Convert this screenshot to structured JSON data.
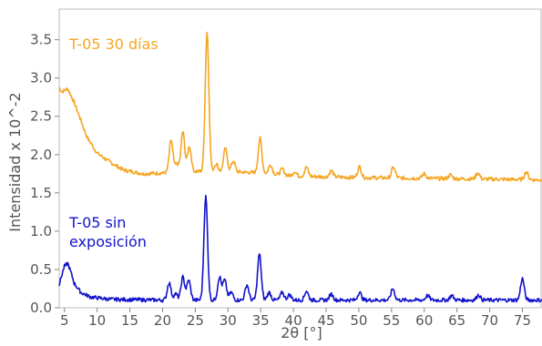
{
  "chart_data": {
    "type": "line",
    "xlabel": "2θ [°]",
    "ylabel": "Intensidad  x 10^-2",
    "xlim": [
      4.2,
      78
    ],
    "ylim": [
      0,
      3.9
    ],
    "x_ticks": [
      5,
      10,
      15,
      20,
      25,
      30,
      35,
      40,
      45,
      50,
      55,
      60,
      65,
      70,
      75
    ],
    "y_ticks": [
      0.0,
      0.5,
      1.0,
      1.5,
      2.0,
      2.5,
      3.0,
      3.5
    ],
    "grid": false,
    "legend": "none",
    "series": [
      {
        "name": "T-05 30 días",
        "color": "#f5a623",
        "label_lines": [
          "T-05 30 días"
        ],
        "baseline": [
          [
            4.2,
            2.88
          ],
          [
            4.6,
            2.82
          ],
          [
            5.5,
            2.86
          ],
          [
            6.5,
            2.68
          ],
          [
            7.5,
            2.45
          ],
          [
            8.5,
            2.22
          ],
          [
            10,
            2.02
          ],
          [
            12,
            1.9
          ],
          [
            14,
            1.8
          ],
          [
            17,
            1.75
          ],
          [
            20,
            1.76
          ],
          [
            23,
            1.78
          ],
          [
            26,
            1.78
          ],
          [
            30,
            1.78
          ],
          [
            35,
            1.76
          ],
          [
            40,
            1.72
          ],
          [
            50,
            1.7
          ],
          [
            60,
            1.69
          ],
          [
            70,
            1.68
          ],
          [
            78,
            1.67
          ]
        ],
        "peaks": [
          [
            21.3,
            0.42
          ],
          [
            22.2,
            0.1
          ],
          [
            23.1,
            0.52
          ],
          [
            24.1,
            0.33
          ],
          [
            26.8,
            1.82
          ],
          [
            28.2,
            0.1
          ],
          [
            29.6,
            0.3
          ],
          [
            30.8,
            0.14
          ],
          [
            34.9,
            0.45
          ],
          [
            36.5,
            0.12
          ],
          [
            38.3,
            0.08
          ],
          [
            40.2,
            0.06
          ],
          [
            42,
            0.12
          ],
          [
            45.8,
            0.08
          ],
          [
            50.1,
            0.14
          ],
          [
            55.3,
            0.14
          ],
          [
            60,
            0.06
          ],
          [
            64,
            0.05
          ],
          [
            68.2,
            0.08
          ],
          [
            75.6,
            0.1
          ]
        ]
      },
      {
        "name": "T-05 sin exposición",
        "color": "#1212cc",
        "label_lines": [
          "T-05 sin",
          "exposición"
        ],
        "baseline": [
          [
            4.2,
            0.3
          ],
          [
            4.6,
            0.43
          ],
          [
            5,
            0.54
          ],
          [
            5.5,
            0.58
          ],
          [
            6,
            0.46
          ],
          [
            6.5,
            0.32
          ],
          [
            7.5,
            0.2
          ],
          [
            9,
            0.14
          ],
          [
            12,
            0.11
          ],
          [
            20,
            0.1
          ],
          [
            40,
            0.1
          ],
          [
            60,
            0.1
          ],
          [
            78,
            0.1
          ]
        ],
        "peaks": [
          [
            21,
            0.23
          ],
          [
            22,
            0.08
          ],
          [
            23.1,
            0.3
          ],
          [
            24,
            0.26
          ],
          [
            26.6,
            1.35
          ],
          [
            28.7,
            0.3
          ],
          [
            29.5,
            0.26
          ],
          [
            30.5,
            0.1
          ],
          [
            32.9,
            0.2
          ],
          [
            34.8,
            0.6
          ],
          [
            36.3,
            0.1
          ],
          [
            38.3,
            0.1
          ],
          [
            39.4,
            0.07
          ],
          [
            42,
            0.12
          ],
          [
            45.8,
            0.08
          ],
          [
            50.1,
            0.1
          ],
          [
            55.2,
            0.15
          ],
          [
            60.5,
            0.06
          ],
          [
            64.2,
            0.06
          ],
          [
            68.3,
            0.07
          ],
          [
            75,
            0.28
          ]
        ]
      }
    ]
  }
}
